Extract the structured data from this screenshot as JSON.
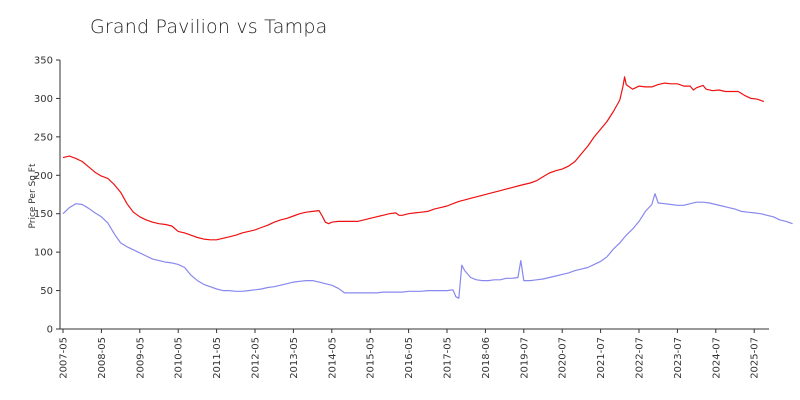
{
  "chart_data": {
    "type": "line",
    "title": "Grand Pavilion vs Tampa",
    "xlabel": "",
    "ylabel": "Price Per Sq Ft",
    "ylim": [
      0,
      350
    ],
    "yticks": [
      0,
      50,
      100,
      150,
      200,
      250,
      300,
      350
    ],
    "xticks": [
      "2007-05",
      "2008-05",
      "2009-05",
      "2010-05",
      "2011-05",
      "2012-05",
      "2013-05",
      "2014-05",
      "2015-05",
      "2016-05",
      "2017-05",
      "2018-06",
      "2019-07",
      "2020-07",
      "2021-07",
      "2022-07",
      "2023-07",
      "2024-07",
      "2025-07"
    ],
    "x_index_range": [
      0,
      222
    ],
    "series": [
      {
        "name": "Grand Pavilion",
        "color": "#ee1111",
        "points": [
          [
            0,
            223
          ],
          [
            2,
            225
          ],
          [
            4,
            222
          ],
          [
            6,
            218
          ],
          [
            8,
            211
          ],
          [
            10,
            204
          ],
          [
            12,
            199
          ],
          [
            14,
            196
          ],
          [
            16,
            188
          ],
          [
            18,
            178
          ],
          [
            20,
            163
          ],
          [
            22,
            152
          ],
          [
            24,
            146
          ],
          [
            26,
            142
          ],
          [
            28,
            139
          ],
          [
            30,
            137
          ],
          [
            32,
            136
          ],
          [
            34,
            134
          ],
          [
            36,
            127
          ],
          [
            38,
            125
          ],
          [
            40,
            122
          ],
          [
            42,
            119
          ],
          [
            44,
            117
          ],
          [
            46,
            116
          ],
          [
            48,
            116
          ],
          [
            50,
            118
          ],
          [
            52,
            120
          ],
          [
            54,
            122
          ],
          [
            56,
            125
          ],
          [
            58,
            127
          ],
          [
            60,
            129
          ],
          [
            62,
            132
          ],
          [
            64,
            135
          ],
          [
            66,
            139
          ],
          [
            68,
            142
          ],
          [
            70,
            144
          ],
          [
            72,
            147
          ],
          [
            74,
            150
          ],
          [
            76,
            152
          ],
          [
            78,
            153
          ],
          [
            80,
            154
          ],
          [
            81,
            147
          ],
          [
            82,
            139
          ],
          [
            83,
            137
          ],
          [
            84,
            139
          ],
          [
            86,
            140
          ],
          [
            88,
            140
          ],
          [
            90,
            140
          ],
          [
            92,
            140
          ],
          [
            94,
            142
          ],
          [
            96,
            144
          ],
          [
            98,
            146
          ],
          [
            100,
            148
          ],
          [
            102,
            150
          ],
          [
            104,
            151
          ],
          [
            105,
            148
          ],
          [
            106,
            148
          ],
          [
            108,
            150
          ],
          [
            110,
            151
          ],
          [
            112,
            152
          ],
          [
            114,
            153
          ],
          [
            116,
            156
          ],
          [
            118,
            158
          ],
          [
            120,
            160
          ],
          [
            122,
            163
          ],
          [
            124,
            166
          ],
          [
            126,
            168
          ],
          [
            128,
            170
          ],
          [
            130,
            172
          ],
          [
            132,
            174
          ],
          [
            134,
            176
          ],
          [
            136,
            178
          ],
          [
            138,
            180
          ],
          [
            140,
            182
          ],
          [
            142,
            184
          ],
          [
            144,
            186
          ],
          [
            146,
            188
          ],
          [
            148,
            190
          ],
          [
            150,
            193
          ],
          [
            152,
            198
          ],
          [
            154,
            203
          ],
          [
            156,
            206
          ],
          [
            158,
            208
          ],
          [
            160,
            212
          ],
          [
            162,
            218
          ],
          [
            164,
            228
          ],
          [
            166,
            238
          ],
          [
            168,
            250
          ],
          [
            170,
            260
          ],
          [
            172,
            270
          ],
          [
            174,
            283
          ],
          [
            176,
            298
          ],
          [
            177,
            316
          ],
          [
            177.5,
            328
          ],
          [
            178,
            318
          ],
          [
            180,
            312
          ],
          [
            182,
            316
          ],
          [
            184,
            315
          ],
          [
            186,
            315
          ],
          [
            188,
            318
          ],
          [
            190,
            320
          ],
          [
            192,
            319
          ],
          [
            194,
            319
          ],
          [
            196,
            316
          ],
          [
            198,
            316
          ],
          [
            199,
            311
          ],
          [
            200,
            314
          ],
          [
            202,
            317
          ],
          [
            203,
            312
          ],
          [
            205,
            310
          ],
          [
            207,
            311
          ],
          [
            209,
            309
          ],
          [
            211,
            309
          ],
          [
            213,
            309
          ],
          [
            215,
            304
          ],
          [
            217,
            300
          ],
          [
            219,
            299
          ],
          [
            221,
            296
          ]
        ]
      },
      {
        "name": "Tampa",
        "color": "#8888ee",
        "points": [
          [
            0,
            150
          ],
          [
            2,
            158
          ],
          [
            4,
            163
          ],
          [
            6,
            162
          ],
          [
            8,
            157
          ],
          [
            10,
            151
          ],
          [
            12,
            146
          ],
          [
            14,
            138
          ],
          [
            16,
            124
          ],
          [
            18,
            112
          ],
          [
            20,
            107
          ],
          [
            22,
            103
          ],
          [
            24,
            99
          ],
          [
            26,
            95
          ],
          [
            28,
            91
          ],
          [
            30,
            89
          ],
          [
            32,
            87
          ],
          [
            34,
            86
          ],
          [
            36,
            84
          ],
          [
            38,
            80
          ],
          [
            40,
            70
          ],
          [
            42,
            63
          ],
          [
            44,
            58
          ],
          [
            46,
            55
          ],
          [
            48,
            52
          ],
          [
            50,
            50
          ],
          [
            52,
            50
          ],
          [
            54,
            49
          ],
          [
            56,
            49
          ],
          [
            58,
            50
          ],
          [
            60,
            51
          ],
          [
            62,
            52
          ],
          [
            64,
            54
          ],
          [
            66,
            55
          ],
          [
            68,
            57
          ],
          [
            70,
            59
          ],
          [
            72,
            61
          ],
          [
            74,
            62
          ],
          [
            76,
            63
          ],
          [
            78,
            63
          ],
          [
            80,
            61
          ],
          [
            82,
            59
          ],
          [
            84,
            57
          ],
          [
            86,
            53
          ],
          [
            88,
            47
          ],
          [
            90,
            47
          ],
          [
            92,
            47
          ],
          [
            94,
            47
          ],
          [
            96,
            47
          ],
          [
            98,
            47
          ],
          [
            100,
            48
          ],
          [
            102,
            48
          ],
          [
            104,
            48
          ],
          [
            106,
            48
          ],
          [
            108,
            49
          ],
          [
            110,
            49
          ],
          [
            112,
            49
          ],
          [
            114,
            50
          ],
          [
            116,
            50
          ],
          [
            118,
            50
          ],
          [
            120,
            50
          ],
          [
            122,
            51
          ],
          [
            123,
            42
          ],
          [
            124,
            40
          ],
          [
            125,
            83
          ],
          [
            126,
            76
          ],
          [
            128,
            67
          ],
          [
            130,
            64
          ],
          [
            132,
            63
          ],
          [
            134,
            63
          ],
          [
            136,
            64
          ],
          [
            138,
            64
          ],
          [
            140,
            66
          ],
          [
            142,
            66
          ],
          [
            144,
            67
          ],
          [
            145,
            89
          ],
          [
            146,
            63
          ],
          [
            148,
            63
          ],
          [
            150,
            64
          ],
          [
            152,
            65
          ],
          [
            154,
            67
          ],
          [
            156,
            69
          ],
          [
            158,
            71
          ],
          [
            160,
            73
          ],
          [
            162,
            76
          ],
          [
            164,
            78
          ],
          [
            166,
            80
          ],
          [
            168,
            84
          ],
          [
            170,
            88
          ],
          [
            172,
            94
          ],
          [
            174,
            104
          ],
          [
            176,
            112
          ],
          [
            178,
            122
          ],
          [
            180,
            130
          ],
          [
            182,
            140
          ],
          [
            184,
            153
          ],
          [
            186,
            162
          ],
          [
            187,
            176
          ],
          [
            188,
            164
          ],
          [
            190,
            163
          ],
          [
            192,
            162
          ],
          [
            194,
            161
          ],
          [
            196,
            161
          ],
          [
            198,
            163
          ],
          [
            200,
            165
          ],
          [
            202,
            165
          ],
          [
            204,
            164
          ],
          [
            206,
            162
          ],
          [
            208,
            160
          ],
          [
            210,
            158
          ],
          [
            212,
            156
          ],
          [
            214,
            153
          ],
          [
            216,
            152
          ],
          [
            218,
            151
          ],
          [
            220,
            150
          ],
          [
            222,
            148
          ],
          [
            224,
            146
          ],
          [
            226,
            142
          ],
          [
            228,
            140
          ],
          [
            230,
            137
          ]
        ]
      }
    ]
  }
}
